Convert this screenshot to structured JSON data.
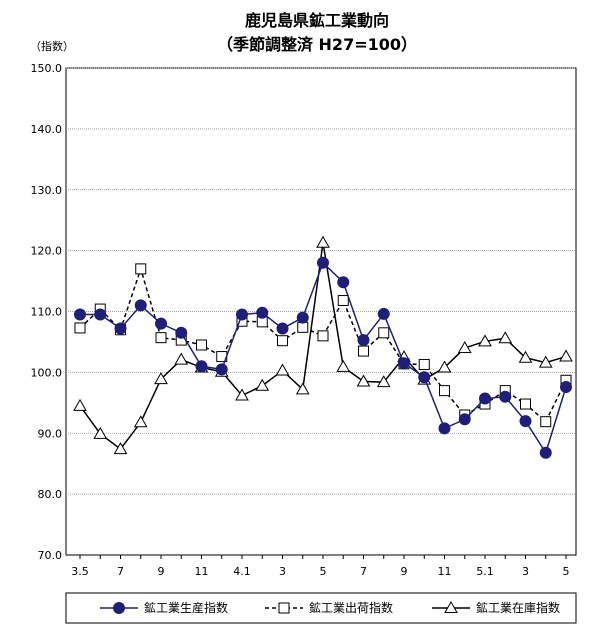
{
  "chart_data": {
    "type": "line",
    "title": "鹿児島県鉱工業動向",
    "subtitle": "（季節調整済 H27=100）",
    "ylabel": "（指数）",
    "ylim": [
      70,
      150
    ],
    "yticks": [
      "70.0",
      "80.0",
      "90.0",
      "100.0",
      "110.0",
      "120.0",
      "130.0",
      "140.0",
      "150.0"
    ],
    "grid": true,
    "legend_position": "bottom",
    "x_tick_labels": [
      "3.5",
      "",
      "7",
      "",
      "9",
      "",
      "11",
      "",
      "4.1",
      "",
      "3",
      "",
      "5",
      "",
      "7",
      "",
      "9",
      "",
      "11",
      "",
      "5.1",
      "",
      "3",
      "",
      "5"
    ],
    "series": [
      {
        "name": "鉱工業生産指数",
        "color": "#1f1f7a",
        "marker": "circle",
        "dash": "solid",
        "values": [
          109.5,
          109.5,
          107.2,
          111.0,
          108.0,
          106.5,
          101.0,
          100.5,
          109.5,
          109.8,
          107.2,
          109.0,
          118.0,
          114.8,
          105.3,
          109.6,
          101.5,
          99.2,
          90.8,
          92.3,
          95.7,
          96.0,
          92.0,
          86.8,
          97.6
        ]
      },
      {
        "name": "鉱工業出荷指数",
        "color": "#000000",
        "marker": "square",
        "dash": "dashed",
        "values": [
          107.3,
          110.4,
          107.0,
          117.0,
          105.7,
          105.3,
          104.5,
          102.6,
          108.4,
          108.3,
          105.2,
          107.4,
          106.0,
          111.8,
          103.5,
          106.5,
          101.4,
          101.3,
          97.0,
          93.0,
          94.8,
          97.0,
          94.8,
          91.9,
          98.7
        ]
      },
      {
        "name": "鉱工業在庫指数",
        "color": "#000000",
        "marker": "triangle",
        "dash": "solid",
        "values": [
          94.5,
          89.9,
          87.4,
          91.8,
          98.9,
          102.1,
          100.8,
          100.1,
          96.2,
          97.8,
          100.3,
          97.2,
          121.3,
          100.9,
          98.5,
          98.4,
          102.5,
          98.8,
          100.8,
          104.0,
          105.1,
          105.6,
          102.4,
          101.6,
          102.6
        ]
      }
    ]
  }
}
